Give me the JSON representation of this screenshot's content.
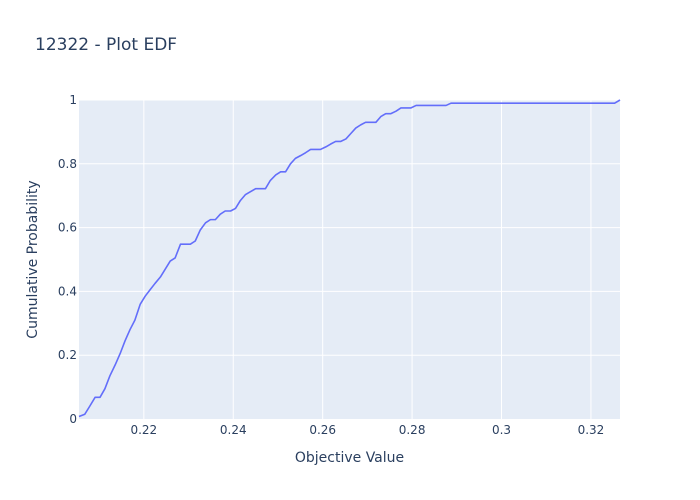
{
  "chart_data": {
    "type": "line",
    "title": "12322 - Plot EDF",
    "xlabel": "Objective Value",
    "ylabel": "Cumulative Probability",
    "xlim": [
      0.2055,
      0.3265
    ],
    "ylim": [
      0,
      1
    ],
    "xticks": [
      0.22,
      0.24,
      0.26,
      0.28,
      0.3,
      0.32
    ],
    "xtick_labels": [
      "0.22",
      "0.24",
      "0.26",
      "0.28",
      "0.3",
      "0.32"
    ],
    "yticks": [
      0,
      0.2,
      0.4,
      0.6,
      0.8,
      1
    ],
    "ytick_labels": [
      "0",
      "0.2",
      "0.4",
      "0.6",
      "0.8",
      "1"
    ],
    "grid": true,
    "line_color": "#636efa",
    "plot_bg": "#e5ecf6",
    "series": [
      {
        "x": [
          0.2055,
          0.2068,
          0.2079,
          0.2091,
          0.2102,
          0.2113,
          0.2124,
          0.2136,
          0.2147,
          0.2158,
          0.2169,
          0.218,
          0.2192,
          0.2203,
          0.2214,
          0.2225,
          0.2237,
          0.2248,
          0.2259,
          0.227,
          0.2282,
          0.2293,
          0.2304,
          0.2315,
          0.2326,
          0.2338,
          0.2349,
          0.236,
          0.2371,
          0.2382,
          0.2394,
          0.2405,
          0.2416,
          0.2427,
          0.2438,
          0.245,
          0.2461,
          0.2472,
          0.2483,
          0.2495,
          0.2506,
          0.2517,
          0.2528,
          0.2539,
          0.2551,
          0.2562,
          0.2573,
          0.2584,
          0.2595,
          0.2607,
          0.2618,
          0.2629,
          0.264,
          0.2652,
          0.2663,
          0.2674,
          0.2685,
          0.2696,
          0.2708,
          0.2719,
          0.273,
          0.2741,
          0.2752,
          0.2764,
          0.2775,
          0.2786,
          0.2797,
          0.2809,
          0.282,
          0.2831,
          0.2842,
          0.2853,
          0.2865,
          0.2876,
          0.2887,
          0.2898,
          0.2909,
          0.2921,
          0.2932,
          0.2943,
          0.2954,
          0.2966,
          0.2977,
          0.3,
          0.31,
          0.32,
          0.3253,
          0.3265
        ],
        "y": [
          0.008,
          0.015,
          0.04,
          0.068,
          0.068,
          0.095,
          0.135,
          0.17,
          0.205,
          0.245,
          0.28,
          0.31,
          0.36,
          0.385,
          0.405,
          0.425,
          0.445,
          0.47,
          0.495,
          0.505,
          0.548,
          0.548,
          0.548,
          0.558,
          0.592,
          0.615,
          0.625,
          0.625,
          0.642,
          0.652,
          0.652,
          0.66,
          0.685,
          0.703,
          0.712,
          0.722,
          0.722,
          0.722,
          0.748,
          0.765,
          0.775,
          0.775,
          0.8,
          0.817,
          0.826,
          0.835,
          0.845,
          0.845,
          0.845,
          0.853,
          0.862,
          0.87,
          0.87,
          0.878,
          0.895,
          0.912,
          0.922,
          0.93,
          0.93,
          0.93,
          0.948,
          0.957,
          0.957,
          0.965,
          0.975,
          0.975,
          0.975,
          0.983,
          0.983,
          0.983,
          0.983,
          0.983,
          0.983,
          0.983,
          0.99,
          0.99,
          0.99,
          0.99,
          0.99,
          0.99,
          0.99,
          0.99,
          0.99,
          0.99,
          0.99,
          0.99,
          0.99,
          1.0
        ]
      }
    ]
  }
}
